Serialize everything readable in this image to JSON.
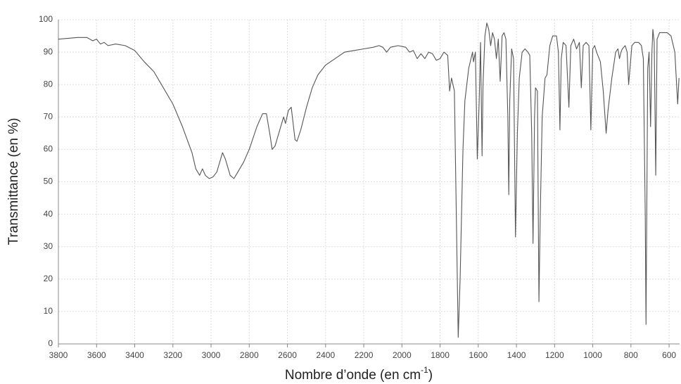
{
  "chart_data": {
    "type": "line",
    "ylabel": "Transmittance (en %)",
    "xlabel_parts": [
      "Nombre d’onde (en cm",
      "-1",
      ")"
    ],
    "xlim": [
      3800,
      545
    ],
    "ylim": [
      0,
      100
    ],
    "xticks": [
      3800,
      3600,
      3400,
      3200,
      3000,
      2800,
      2600,
      2400,
      2200,
      2000,
      1800,
      1600,
      1400,
      1200,
      1000,
      800,
      600
    ],
    "yticks": [
      0,
      10,
      20,
      30,
      40,
      50,
      60,
      70,
      80,
      90,
      100
    ],
    "grid": true,
    "series": [
      {
        "color": "#555555",
        "x": [
          3800,
          3700,
          3650,
          3620,
          3600,
          3580,
          3560,
          3540,
          3500,
          3450,
          3400,
          3350,
          3300,
          3250,
          3200,
          3150,
          3100,
          3080,
          3060,
          3045,
          3030,
          3010,
          2990,
          2970,
          2950,
          2940,
          2925,
          2900,
          2880,
          2860,
          2830,
          2800,
          2760,
          2730,
          2710,
          2690,
          2680,
          2665,
          2640,
          2620,
          2610,
          2595,
          2580,
          2570,
          2560,
          2550,
          2530,
          2500,
          2470,
          2440,
          2400,
          2350,
          2300,
          2250,
          2200,
          2150,
          2120,
          2100,
          2080,
          2060,
          2020,
          1980,
          1960,
          1940,
          1920,
          1900,
          1880,
          1860,
          1840,
          1820,
          1800,
          1780,
          1760,
          1750,
          1740,
          1725,
          1715,
          1705,
          1695,
          1680,
          1670,
          1650,
          1630,
          1625,
          1615,
          1605,
          1595,
          1588,
          1580,
          1575,
          1565,
          1555,
          1545,
          1535,
          1525,
          1515,
          1505,
          1495,
          1485,
          1475,
          1465,
          1455,
          1445,
          1440,
          1435,
          1425,
          1415,
          1405,
          1395,
          1385,
          1370,
          1355,
          1340,
          1330,
          1320,
          1313,
          1305,
          1300,
          1290,
          1282,
          1275,
          1265,
          1250,
          1240,
          1225,
          1210,
          1190,
          1180,
          1172,
          1165,
          1155,
          1140,
          1125,
          1115,
          1100,
          1085,
          1070,
          1060,
          1050,
          1035,
          1020,
          1010,
          1000,
          990,
          980,
          960,
          945,
          930,
          920,
          900,
          880,
          868,
          860,
          852,
          845,
          830,
          820,
          812,
          805,
          795,
          780,
          760,
          745,
          735,
          725,
          721,
          717,
          712,
          705,
          697,
          690,
          685,
          678,
          670,
          663,
          650,
          630,
          610,
          590,
          570,
          555,
          548
        ],
        "values": [
          94,
          94.5,
          94.5,
          93.5,
          94,
          92.5,
          93,
          92,
          92.5,
          92,
          90.5,
          87,
          84,
          79,
          74,
          67,
          59,
          54,
          52,
          54,
          52,
          51,
          51.5,
          53,
          57,
          59,
          57,
          52,
          51,
          53,
          56,
          60,
          67,
          71,
          71,
          64,
          60,
          61,
          66,
          70,
          68,
          72,
          73,
          68,
          63,
          62.5,
          66,
          73,
          79,
          83,
          86,
          88,
          90,
          90.5,
          91,
          91.5,
          92,
          91.5,
          90,
          91.5,
          92,
          91.5,
          90,
          90.5,
          88,
          89.5,
          88,
          90,
          89.5,
          87.5,
          88,
          90,
          89,
          78,
          82,
          78,
          40,
          2,
          20,
          60,
          75,
          85,
          90,
          87,
          90,
          57,
          75,
          93,
          58,
          80,
          95,
          99,
          97,
          92,
          96,
          94,
          88,
          94,
          81,
          95,
          96,
          94,
          70,
          46,
          75,
          91,
          88,
          33,
          65,
          82,
          90,
          91,
          90,
          89,
          65,
          31,
          70,
          79,
          78,
          13,
          40,
          70,
          82,
          83,
          92,
          95,
          95,
          90,
          66,
          88,
          93,
          92,
          73,
          92,
          94,
          91,
          93,
          79,
          92,
          93,
          92,
          66,
          91,
          92,
          90,
          87,
          78,
          65,
          72,
          82,
          90,
          91,
          88,
          90,
          91,
          92,
          90,
          80,
          85,
          92,
          93,
          93,
          92,
          88,
          40,
          6,
          40,
          85,
          90,
          67,
          90,
          97,
          93,
          52,
          94,
          96,
          96,
          96,
          95,
          90,
          74,
          82
        ]
      }
    ]
  }
}
